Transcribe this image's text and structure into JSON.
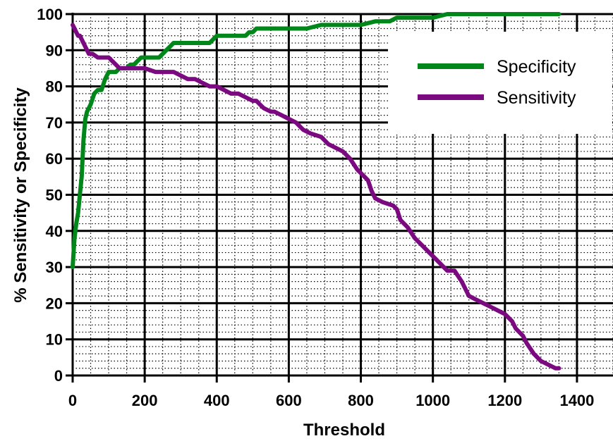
{
  "chart_data": {
    "type": "line",
    "xlabel": "Threshold",
    "ylabel": "% Sensitivity or Specificity",
    "xlim": [
      0,
      1500
    ],
    "ylim": [
      0,
      100
    ],
    "x_ticks": [
      "0",
      "200",
      "400",
      "600",
      "800",
      "1000",
      "1200",
      "1400"
    ],
    "y_ticks": [
      "0",
      "10",
      "20",
      "30",
      "40",
      "50",
      "60",
      "70",
      "80",
      "90",
      "100"
    ],
    "grid": "major solid, minor dotted",
    "legend_position": "top-right",
    "series": [
      {
        "name": "Specificity",
        "color": "#00871a",
        "points": [
          [
            0,
            30
          ],
          [
            5,
            38
          ],
          [
            10,
            42
          ],
          [
            15,
            45
          ],
          [
            20,
            50
          ],
          [
            25,
            55
          ],
          [
            30,
            65
          ],
          [
            35,
            71
          ],
          [
            40,
            73
          ],
          [
            50,
            75
          ],
          [
            60,
            78
          ],
          [
            70,
            79
          ],
          [
            80,
            79
          ],
          [
            90,
            82
          ],
          [
            100,
            84
          ],
          [
            110,
            84
          ],
          [
            120,
            84
          ],
          [
            130,
            85
          ],
          [
            140,
            85
          ],
          [
            150,
            85
          ],
          [
            160,
            86
          ],
          [
            170,
            86
          ],
          [
            180,
            87
          ],
          [
            190,
            88
          ],
          [
            200,
            88
          ],
          [
            220,
            88
          ],
          [
            240,
            88
          ],
          [
            250,
            89
          ],
          [
            260,
            90
          ],
          [
            270,
            91
          ],
          [
            280,
            92
          ],
          [
            300,
            92
          ],
          [
            320,
            92
          ],
          [
            340,
            92
          ],
          [
            360,
            92
          ],
          [
            380,
            92
          ],
          [
            390,
            93
          ],
          [
            400,
            94
          ],
          [
            420,
            94
          ],
          [
            440,
            94
          ],
          [
            460,
            94
          ],
          [
            480,
            94
          ],
          [
            490,
            95
          ],
          [
            500,
            95
          ],
          [
            510,
            96
          ],
          [
            530,
            96
          ],
          [
            550,
            96
          ],
          [
            600,
            96
          ],
          [
            650,
            96
          ],
          [
            690,
            97
          ],
          [
            750,
            97
          ],
          [
            800,
            97
          ],
          [
            840,
            98
          ],
          [
            880,
            98
          ],
          [
            900,
            99
          ],
          [
            950,
            99
          ],
          [
            1000,
            99
          ],
          [
            1040,
            100
          ],
          [
            1100,
            100
          ],
          [
            1200,
            100
          ],
          [
            1300,
            100
          ],
          [
            1350,
            100
          ]
        ]
      },
      {
        "name": "Sensitivity",
        "color": "#7b0a80",
        "points": [
          [
            0,
            97
          ],
          [
            5,
            96
          ],
          [
            10,
            95
          ],
          [
            15,
            94
          ],
          [
            20,
            94
          ],
          [
            25,
            93
          ],
          [
            30,
            92
          ],
          [
            35,
            91
          ],
          [
            40,
            90
          ],
          [
            45,
            89
          ],
          [
            55,
            89
          ],
          [
            70,
            88
          ],
          [
            80,
            88
          ],
          [
            100,
            88
          ],
          [
            110,
            87
          ],
          [
            120,
            86
          ],
          [
            130,
            85
          ],
          [
            150,
            85
          ],
          [
            170,
            85
          ],
          [
            200,
            85
          ],
          [
            230,
            84
          ],
          [
            260,
            84
          ],
          [
            280,
            84
          ],
          [
            300,
            83
          ],
          [
            320,
            82
          ],
          [
            340,
            82
          ],
          [
            360,
            81
          ],
          [
            380,
            80
          ],
          [
            400,
            80
          ],
          [
            420,
            79
          ],
          [
            440,
            78
          ],
          [
            460,
            78
          ],
          [
            480,
            77
          ],
          [
            500,
            76
          ],
          [
            510,
            76
          ],
          [
            520,
            75
          ],
          [
            530,
            74
          ],
          [
            550,
            73
          ],
          [
            560,
            73
          ],
          [
            580,
            72
          ],
          [
            600,
            71
          ],
          [
            620,
            70
          ],
          [
            640,
            68
          ],
          [
            660,
            67
          ],
          [
            690,
            66
          ],
          [
            710,
            64
          ],
          [
            730,
            63
          ],
          [
            750,
            62
          ],
          [
            770,
            60
          ],
          [
            790,
            57
          ],
          [
            810,
            55
          ],
          [
            820,
            54
          ],
          [
            830,
            51
          ],
          [
            840,
            49
          ],
          [
            860,
            48
          ],
          [
            890,
            47
          ],
          [
            900,
            46
          ],
          [
            910,
            43
          ],
          [
            930,
            41
          ],
          [
            950,
            38
          ],
          [
            970,
            36
          ],
          [
            990,
            34
          ],
          [
            1010,
            32
          ],
          [
            1030,
            30
          ],
          [
            1040,
            29
          ],
          [
            1060,
            29
          ],
          [
            1080,
            26
          ],
          [
            1100,
            22
          ],
          [
            1120,
            21
          ],
          [
            1140,
            20
          ],
          [
            1160,
            19
          ],
          [
            1180,
            18
          ],
          [
            1200,
            17
          ],
          [
            1220,
            15
          ],
          [
            1230,
            13
          ],
          [
            1250,
            11
          ],
          [
            1260,
            9
          ],
          [
            1280,
            6
          ],
          [
            1300,
            4
          ],
          [
            1320,
            3
          ],
          [
            1340,
            2
          ],
          [
            1350,
            2
          ]
        ]
      }
    ]
  }
}
